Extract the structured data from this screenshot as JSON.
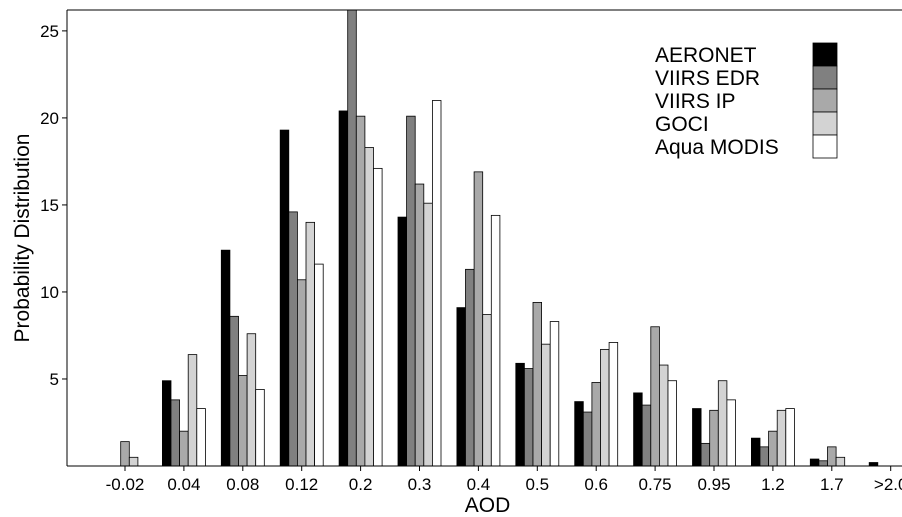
{
  "chart_data": {
    "type": "bar",
    "xlabel": "AOD",
    "ylabel": "Probability Distribution",
    "ylim": [
      0,
      26.2
    ],
    "yticks": [
      5,
      10,
      15,
      20,
      25
    ],
    "grid": false,
    "legend_position": "top-right",
    "categories": [
      "-0.02",
      "0.04",
      "0.08",
      "0.12",
      "0.2",
      "0.3",
      "0.4",
      "0.5",
      "0.6",
      "0.75",
      "0.95",
      "1.2",
      "1.7",
      ">2.0"
    ],
    "series": [
      {
        "name": "AERONET",
        "color": "#000000",
        "values": [
          0,
          4.9,
          12.4,
          19.3,
          20.4,
          14.3,
          9.1,
          5.9,
          3.7,
          4.2,
          3.3,
          1.6,
          0.4,
          0.2
        ]
      },
      {
        "name": "VIIRS EDR",
        "color": "#808080",
        "values": [
          0,
          3.8,
          8.6,
          14.6,
          26.2,
          20.1,
          11.3,
          5.6,
          3.1,
          3.5,
          1.3,
          1.1,
          0.3,
          0
        ]
      },
      {
        "name": "VIIRS IP",
        "color": "#a9a9a9",
        "values": [
          1.4,
          2.0,
          5.2,
          10.7,
          20.1,
          16.2,
          16.9,
          9.4,
          4.8,
          8.0,
          3.2,
          2.0,
          1.1,
          0
        ]
      },
      {
        "name": "GOCI",
        "color": "#d3d3d3",
        "values": [
          0.5,
          6.4,
          7.6,
          14.0,
          18.3,
          15.1,
          8.7,
          7.0,
          6.7,
          5.8,
          4.9,
          3.2,
          0.5,
          0
        ]
      },
      {
        "name": "Aqua MODIS",
        "color": "#ffffff",
        "values": [
          0,
          3.3,
          4.4,
          11.6,
          17.1,
          21.0,
          14.4,
          8.3,
          7.1,
          4.9,
          3.8,
          3.3,
          0,
          0
        ]
      }
    ]
  }
}
